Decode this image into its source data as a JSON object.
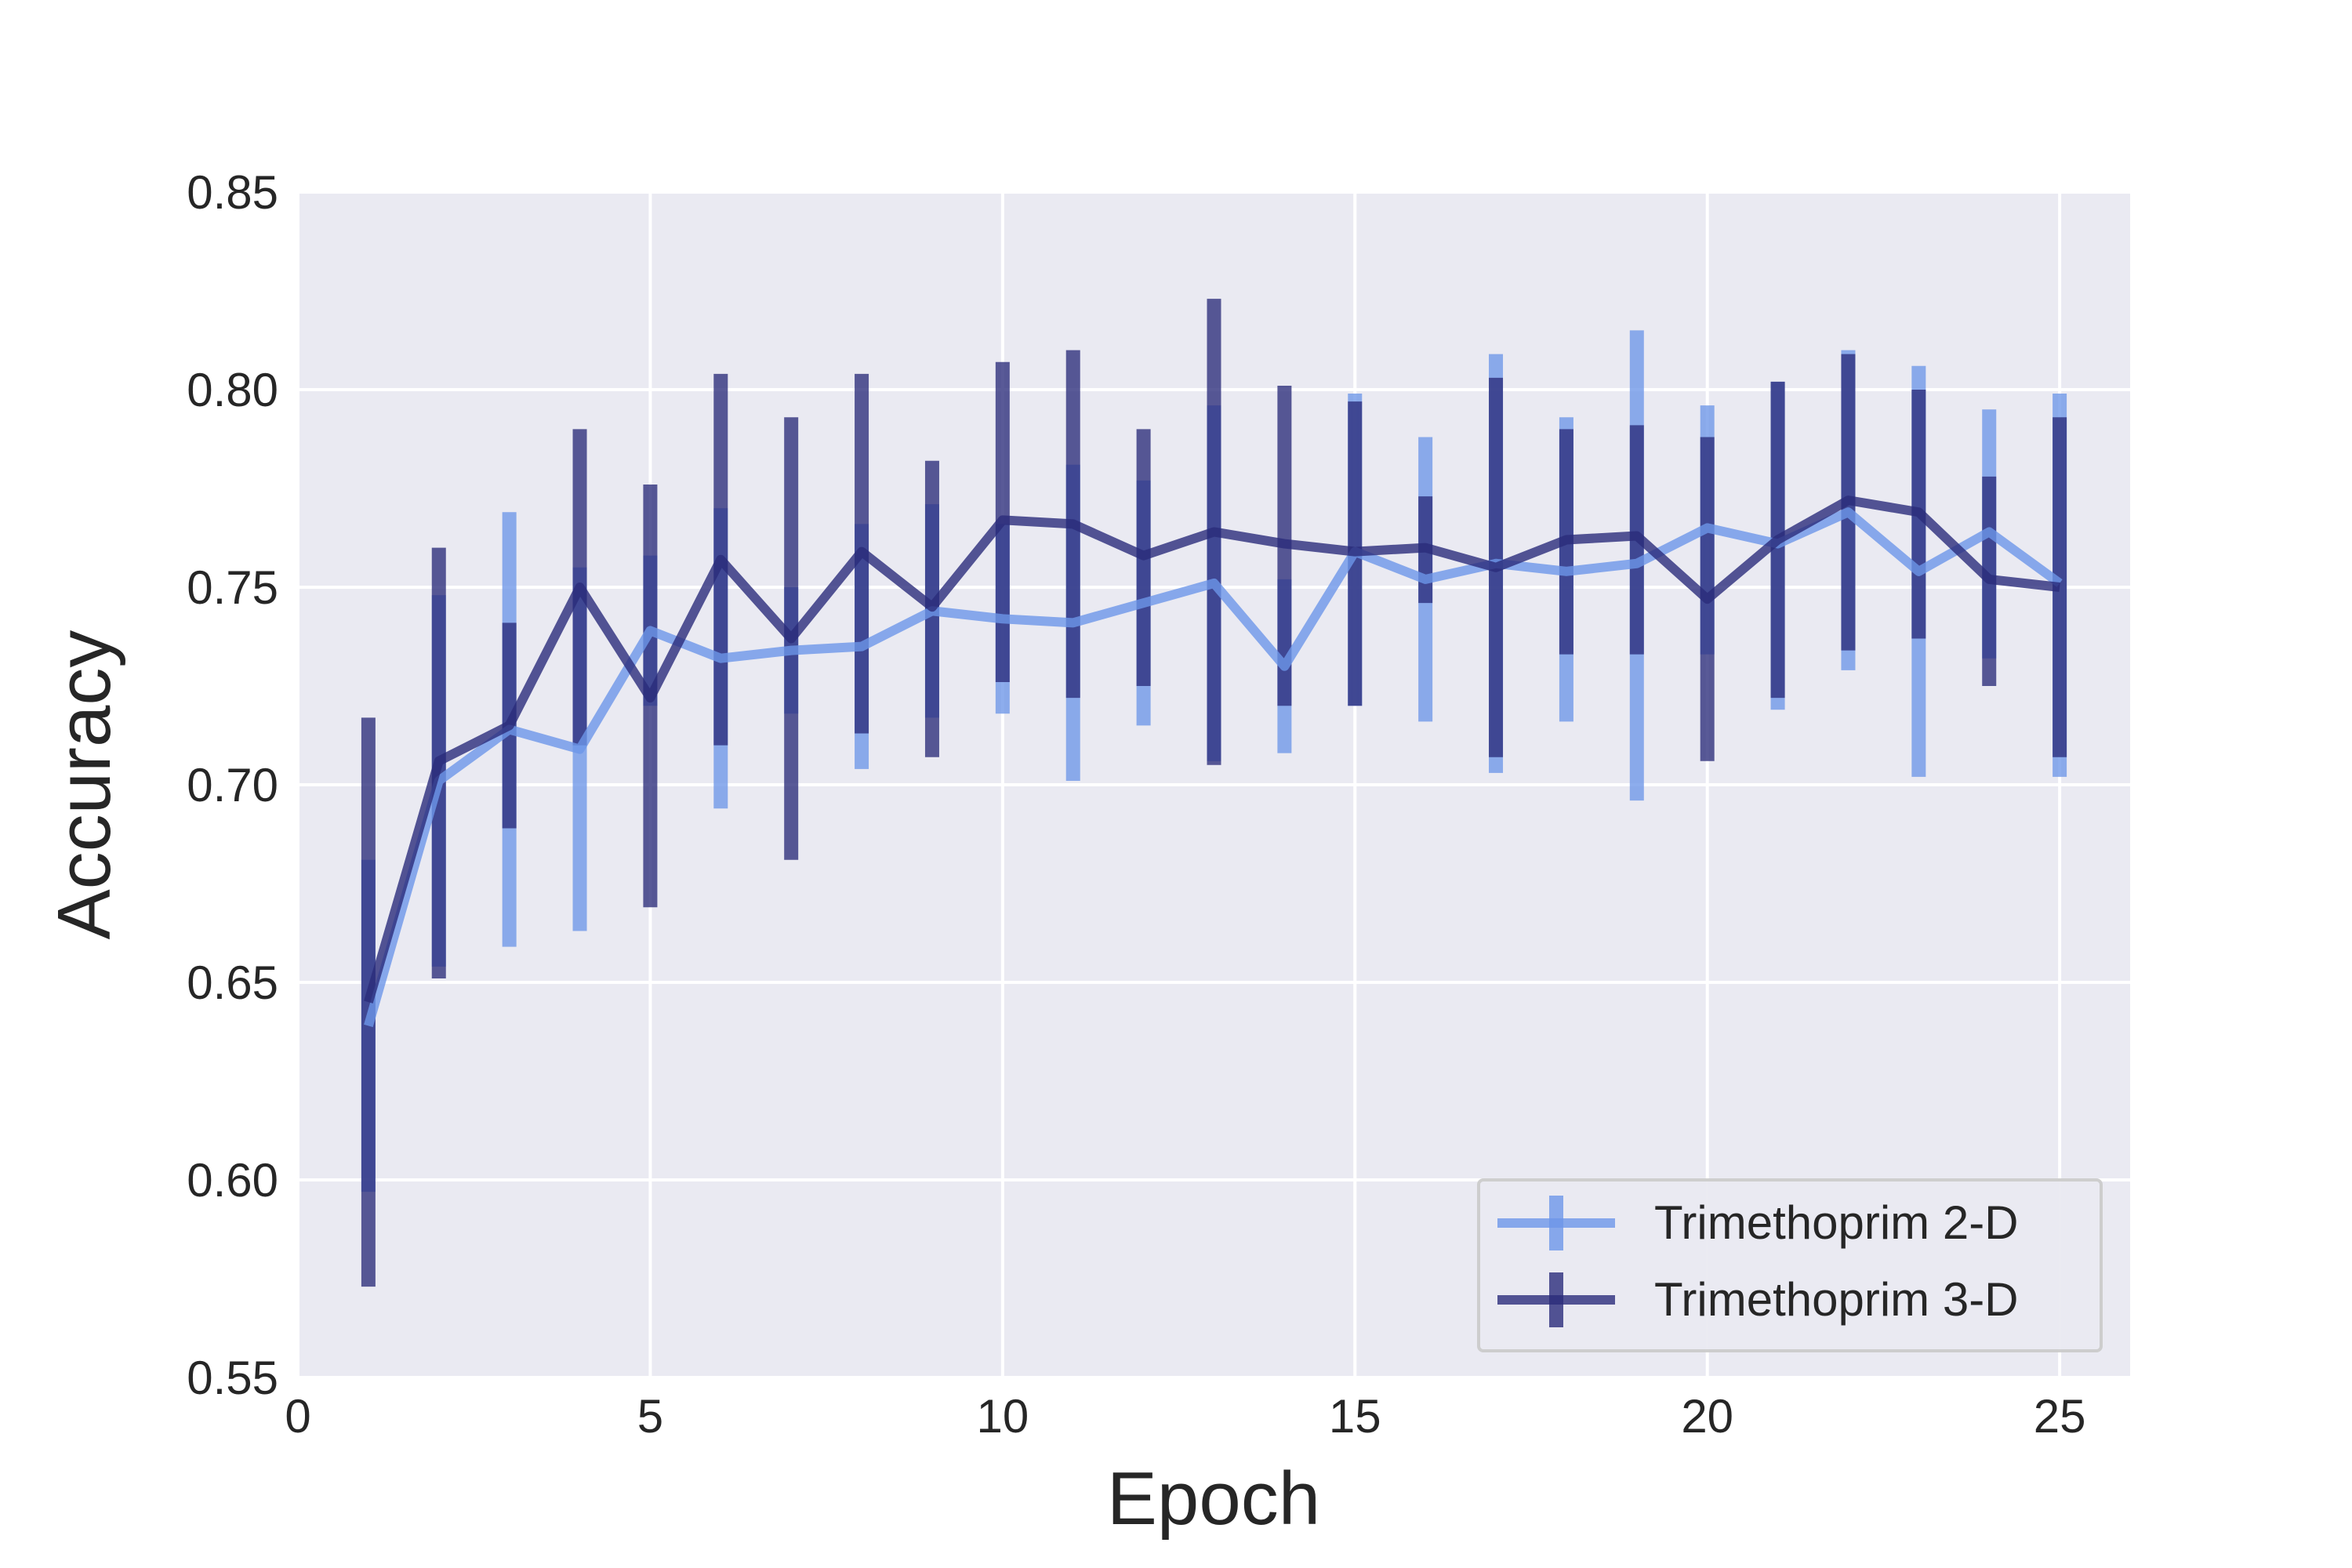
{
  "chart_data": {
    "type": "line",
    "title": "",
    "xlabel": "Epoch",
    "ylabel": "Accuracy",
    "xlim": [
      0,
      26
    ],
    "ylim": [
      0.55,
      0.85
    ],
    "xticks": [
      0,
      5,
      10,
      15,
      20,
      25
    ],
    "yticks": [
      0.55,
      0.6,
      0.65,
      0.7,
      0.75,
      0.8,
      0.85
    ],
    "xtick_labels": [
      "0",
      "5",
      "10",
      "15",
      "20",
      "25"
    ],
    "ytick_labels": [
      "0.55",
      "0.60",
      "0.65",
      "0.70",
      "0.75",
      "0.80",
      "0.85"
    ],
    "grid": true,
    "legend_position": "bottom-right",
    "x": [
      1,
      2,
      3,
      4,
      5,
      6,
      7,
      8,
      9,
      10,
      11,
      12,
      13,
      14,
      15,
      16,
      17,
      18,
      19,
      20,
      21,
      22,
      23,
      24,
      25
    ],
    "series": [
      {
        "name": "Trimethoprim 2-D",
        "color": "#6d96e8",
        "values": [
          0.639,
          0.701,
          0.714,
          0.709,
          0.739,
          0.732,
          0.734,
          0.735,
          0.744,
          0.742,
          0.741,
          0.746,
          0.751,
          0.73,
          0.759,
          0.752,
          0.756,
          0.754,
          0.756,
          0.765,
          0.761,
          0.769,
          0.754,
          0.764,
          0.751
        ],
        "lower": [
          0.597,
          0.654,
          0.659,
          0.663,
          0.72,
          0.694,
          0.718,
          0.704,
          0.717,
          0.718,
          0.701,
          0.715,
          0.706,
          0.708,
          0.72,
          0.716,
          0.703,
          0.716,
          0.696,
          0.733,
          0.719,
          0.729,
          0.702,
          0.732,
          0.702
        ],
        "upper": [
          0.681,
          0.748,
          0.769,
          0.755,
          0.758,
          0.77,
          0.75,
          0.766,
          0.771,
          0.766,
          0.781,
          0.777,
          0.796,
          0.752,
          0.799,
          0.788,
          0.809,
          0.793,
          0.815,
          0.796,
          0.802,
          0.81,
          0.806,
          0.795,
          0.799
        ]
      },
      {
        "name": "Trimethoprim 3-D",
        "color": "#2a2c7a",
        "values": [
          0.645,
          0.706,
          0.715,
          0.75,
          0.722,
          0.757,
          0.737,
          0.759,
          0.745,
          0.767,
          0.766,
          0.758,
          0.764,
          0.761,
          0.759,
          0.76,
          0.755,
          0.762,
          0.763,
          0.747,
          0.762,
          0.772,
          0.769,
          0.752,
          0.75
        ],
        "lower": [
          0.573,
          0.651,
          0.689,
          0.71,
          0.669,
          0.71,
          0.681,
          0.713,
          0.707,
          0.726,
          0.722,
          0.725,
          0.705,
          0.72,
          0.72,
          0.746,
          0.707,
          0.733,
          0.733,
          0.706,
          0.722,
          0.734,
          0.737,
          0.725,
          0.707
        ],
        "upper": [
          0.717,
          0.76,
          0.741,
          0.79,
          0.776,
          0.804,
          0.793,
          0.804,
          0.782,
          0.807,
          0.81,
          0.79,
          0.823,
          0.801,
          0.797,
          0.773,
          0.803,
          0.79,
          0.791,
          0.788,
          0.802,
          0.809,
          0.8,
          0.778,
          0.793
        ]
      }
    ]
  }
}
